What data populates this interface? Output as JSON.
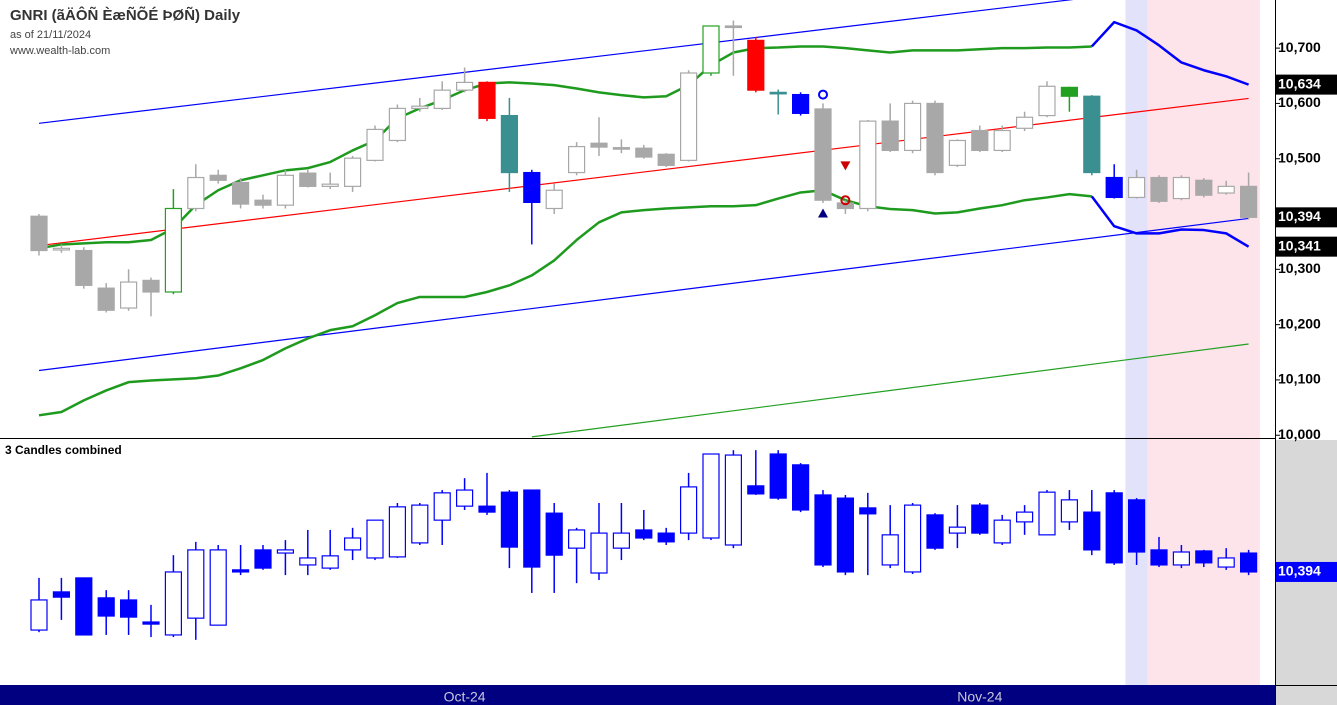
{
  "header": {
    "title": "GNRI (ãÄÔÑ ÈæÑÕÉ ÞØÑ) Daily",
    "date": "as of 21/11/2024",
    "source": "www.wealth-lab.com"
  },
  "chart_data": [
    {
      "type": "candlestick",
      "categories": [
        null,
        null,
        null,
        null,
        null,
        null,
        null,
        null,
        null,
        null,
        null,
        null,
        null,
        null,
        null,
        null,
        null,
        null,
        null,
        "Oct-24",
        null,
        null,
        null,
        null,
        null,
        null,
        null,
        null,
        null,
        null,
        null,
        null,
        null,
        null,
        null,
        null,
        null,
        null,
        null,
        null,
        null,
        null,
        "Nov-24",
        null,
        null,
        null,
        null,
        null,
        null,
        null,
        null,
        null,
        null,
        null,
        null
      ],
      "open": [
        10396,
        10335,
        10334,
        10266,
        10230,
        10280,
        10259,
        10410,
        10470,
        10457,
        10425,
        10416,
        10474,
        10450,
        10450,
        10497,
        10533,
        10591,
        10591,
        10624,
        10638,
        10578,
        10475,
        10410,
        10475,
        10528,
        10520,
        10519,
        10508,
        10497,
        10655,
        10740,
        10714,
        10620,
        10616,
        10590,
        10420,
        10410,
        10568,
        10515,
        10600,
        10488,
        10551,
        10515,
        10555,
        10578,
        10629,
        10613,
        10466,
        10430,
        10466,
        10428,
        10461,
        10438,
        10450
      ],
      "high": [
        10400,
        10345,
        10340,
        10275,
        10300,
        10285,
        10445,
        10490,
        10480,
        10465,
        10435,
        10480,
        10480,
        10475,
        10505,
        10560,
        10598,
        10610,
        10640,
        10665,
        10640,
        10610,
        10480,
        10455,
        10530,
        10575,
        10535,
        10525,
        10510,
        10660,
        10740,
        10750,
        10720,
        10625,
        10620,
        10600,
        10425,
        10570,
        10600,
        10605,
        10605,
        10535,
        10560,
        10560,
        10585,
        10640,
        10630,
        10615,
        10490,
        10480,
        10470,
        10470,
        10465,
        10460,
        10475
      ],
      "low": [
        10325,
        10330,
        10265,
        10222,
        10225,
        10215,
        10255,
        10405,
        10455,
        10410,
        10410,
        10410,
        10448,
        10445,
        10440,
        10495,
        10530,
        10585,
        10588,
        10620,
        10568,
        10440,
        10345,
        10400,
        10470,
        10505,
        10510,
        10500,
        10485,
        10495,
        10650,
        10650,
        10620,
        10580,
        10578,
        10420,
        10400,
        10405,
        10512,
        10510,
        10470,
        10485,
        10512,
        10512,
        10550,
        10575,
        10585,
        10470,
        10428,
        10428,
        10420,
        10425,
        10430,
        10435,
        10390
      ],
      "close": [
        10334,
        10338,
        10271,
        10226,
        10277,
        10259,
        10410,
        10466,
        10461,
        10418,
        10416,
        10470,
        10450,
        10454,
        10501,
        10553,
        10591,
        10595,
        10624,
        10638,
        10573,
        10475,
        10421,
        10443,
        10522,
        10521,
        10519,
        10503,
        10488,
        10655,
        10740,
        10738,
        10624,
        10618,
        10582,
        10425,
        10410,
        10568,
        10515,
        10600,
        10475,
        10533,
        10515,
        10551,
        10575,
        10631,
        10613,
        10475,
        10430,
        10466,
        10423,
        10466,
        10434,
        10450,
        10394
      ],
      "colors": [
        "#a8a8a8",
        "#a8a8a8",
        "#a8a8a8",
        "#a8a8a8",
        "#a8a8a8",
        "#a8a8a8",
        "#22a022",
        "#a8a8a8",
        "#a8a8a8",
        "#a8a8a8",
        "#a8a8a8",
        "#a8a8a8",
        "#a8a8a8",
        "#a8a8a8",
        "#a8a8a8",
        "#a8a8a8",
        "#a8a8a8",
        "#a8a8a8",
        "#a8a8a8",
        "#a8a8a8",
        "#ff0000",
        "#3a9090",
        "#0000ff",
        "#a8a8a8",
        "#a8a8a8",
        "#a8a8a8",
        "#a8a8a8",
        "#a8a8a8",
        "#a8a8a8",
        "#a8a8a8",
        "#22a022",
        "#a8a8a8",
        "#ff0000",
        "#3a9090",
        "#0000ff",
        "#a8a8a8",
        "#a8a8a8",
        "#a8a8a8",
        "#a8a8a8",
        "#a8a8a8",
        "#a8a8a8",
        "#a8a8a8",
        "#a8a8a8",
        "#a8a8a8",
        "#a8a8a8",
        "#a8a8a8",
        "#22a022",
        "#3a9090",
        "#0000ff",
        "#a8a8a8",
        "#a8a8a8",
        "#a8a8a8",
        "#a8a8a8",
        "#a8a8a8",
        "#a8a8a8"
      ],
      "ylim": [
        9995,
        10787
      ],
      "yticks": [
        {
          "value": 10000,
          "label": "10,000"
        },
        {
          "value": 10100,
          "label": "10,100"
        },
        {
          "value": 10200,
          "label": "10,200"
        },
        {
          "value": 10300,
          "label": "10,300"
        },
        {
          "value": 10500,
          "label": "10,500"
        },
        {
          "value": 10600,
          "label": "10,600"
        },
        {
          "value": 10700,
          "label": "10,700"
        }
      ],
      "series": [
        {
          "color": "#1e9a1e",
          "values": [
            10338,
            10345,
            10347,
            10349,
            10349,
            10353,
            10374,
            10416,
            10443,
            10461,
            10470,
            10479,
            10483,
            10494,
            10515,
            10533,
            10573,
            10591,
            10606,
            10624,
            10636,
            10638,
            10636,
            10633,
            10627,
            10620,
            10615,
            10611,
            10613,
            10633,
            10669,
            10692,
            10700,
            10701,
            10703,
            10703,
            10700,
            10696,
            10692,
            10696,
            10696,
            10696,
            10698,
            10700,
            10700,
            10701,
            10701,
            10703,
            null,
            null,
            null,
            null,
            null,
            null,
            null
          ]
        },
        {
          "color": "#1e9a1e",
          "values": [
            10036,
            10042,
            10063,
            10081,
            10096,
            10099,
            10101,
            10103,
            10108,
            10121,
            10136,
            10157,
            10175,
            10190,
            10197,
            10217,
            10239,
            10250,
            10250,
            10250,
            10259,
            10271,
            10289,
            10316,
            10353,
            10385,
            10403,
            10407,
            10410,
            10412,
            10414,
            10414,
            10416,
            10428,
            10439,
            10443,
            10425,
            10414,
            10409,
            10407,
            10401,
            10403,
            10410,
            10416,
            10425,
            10430,
            10436,
            10432,
            null,
            null,
            null,
            null,
            null,
            null,
            null
          ]
        },
        {
          "color": "#0000ff",
          "values": [
            null,
            null,
            null,
            null,
            null,
            null,
            null,
            null,
            null,
            null,
            null,
            null,
            null,
            null,
            null,
            null,
            null,
            null,
            null,
            null,
            null,
            null,
            null,
            null,
            null,
            null,
            null,
            null,
            null,
            null,
            null,
            null,
            null,
            null,
            null,
            null,
            null,
            null,
            null,
            null,
            null,
            null,
            null,
            null,
            null,
            null,
            null,
            10703,
            10747,
            10732,
            10705,
            10674,
            10660,
            10649,
            10634
          ]
        },
        {
          "color": "#0000ff",
          "values": [
            null,
            null,
            null,
            null,
            null,
            null,
            null,
            null,
            null,
            null,
            null,
            null,
            null,
            null,
            null,
            null,
            null,
            null,
            null,
            null,
            null,
            null,
            null,
            null,
            null,
            null,
            null,
            null,
            null,
            null,
            null,
            null,
            null,
            null,
            null,
            null,
            null,
            null,
            null,
            null,
            null,
            null,
            null,
            null,
            null,
            null,
            null,
            10432,
            10378,
            10365,
            10365,
            10372,
            10371,
            10365,
            10341
          ]
        }
      ],
      "trend_lines": [
        {
          "color": "#ff0000",
          "x": [
            0,
            54
          ],
          "values": [
            10343,
            10609
          ]
        },
        {
          "color": "#0000ff",
          "x": [
            0,
            54
          ],
          "values": [
            10564,
            10826
          ]
        },
        {
          "color": "#0000ff",
          "x": [
            0,
            54
          ],
          "values": [
            10117,
            10392
          ]
        },
        {
          "color": "#22a022",
          "x": [
            22,
            54
          ],
          "values": [
            9997,
            10165
          ]
        }
      ],
      "signals": [
        {
          "index": 35,
          "value": 10616,
          "shape": "circle",
          "color": "#0000ff"
        },
        {
          "index": 35,
          "value": 10401,
          "shape": "triangle-up",
          "color": "#000080"
        },
        {
          "index": 36,
          "value": 10488,
          "shape": "triangle-down",
          "color": "#cc0000"
        },
        {
          "index": 36,
          "value": 10425,
          "shape": "circle",
          "color": "#cc0000"
        }
      ],
      "highlights": [
        {
          "from": 49,
          "to": 49,
          "color": "#e2e2fb"
        },
        {
          "from": 50,
          "to": 54,
          "color": "#fde3ea"
        }
      ],
      "price_labels": [
        {
          "value": 10634,
          "label": "10,634",
          "color": "#000000"
        },
        {
          "value": 10394,
          "label": "10,394",
          "color": "#000000"
        },
        {
          "value": 10341,
          "label": "10,341",
          "color": "#000000"
        }
      ]
    },
    {
      "type": "candlestick",
      "title": "3 Candles combined",
      "color": "#0000ff",
      "open": [
        10228,
        10337,
        10377,
        10320,
        10314,
        10251,
        10214,
        10262,
        10242,
        10400,
        10457,
        10448,
        10414,
        10405,
        10457,
        10434,
        10437,
        10477,
        10542,
        10582,
        10582,
        10622,
        10628,
        10562,
        10462,
        10391,
        10462,
        10514,
        10505,
        10505,
        10491,
        10471,
        10640,
        10731,
        10700,
        10614,
        10605,
        10577,
        10414,
        10394,
        10557,
        10505,
        10585,
        10477,
        10537,
        10500,
        10537,
        10565,
        10620,
        10600,
        10457,
        10414,
        10454,
        10408,
        10448
      ],
      "high": [
        10377,
        10377,
        10377,
        10342,
        10342,
        10300,
        10442,
        10480,
        10471,
        10471,
        10471,
        10485,
        10514,
        10514,
        10520,
        10542,
        10591,
        10591,
        10628,
        10662,
        10677,
        10628,
        10628,
        10591,
        10520,
        10591,
        10591,
        10571,
        10520,
        10677,
        10731,
        10742,
        10742,
        10742,
        10705,
        10628,
        10614,
        10620,
        10585,
        10591,
        10562,
        10585,
        10591,
        10557,
        10585,
        10628,
        10628,
        10628,
        10628,
        10605,
        10494,
        10471,
        10457,
        10462,
        10457
      ],
      "low": [
        10222,
        10257,
        10214,
        10214,
        10214,
        10208,
        10208,
        10200,
        10242,
        10385,
        10400,
        10385,
        10385,
        10400,
        10428,
        10428,
        10434,
        10471,
        10471,
        10571,
        10557,
        10405,
        10334,
        10334,
        10362,
        10371,
        10428,
        10485,
        10471,
        10485,
        10485,
        10462,
        10614,
        10600,
        10565,
        10408,
        10385,
        10385,
        10405,
        10388,
        10457,
        10462,
        10500,
        10471,
        10500,
        10500,
        10514,
        10442,
        10414,
        10414,
        10408,
        10405,
        10408,
        10400,
        10385
      ],
      "close": [
        10314,
        10322,
        10214,
        10268,
        10265,
        10245,
        10394,
        10457,
        10457,
        10394,
        10405,
        10457,
        10434,
        10440,
        10491,
        10542,
        10580,
        10585,
        10620,
        10628,
        10565,
        10465,
        10408,
        10442,
        10514,
        10505,
        10505,
        10491,
        10480,
        10637,
        10731,
        10728,
        10617,
        10605,
        10571,
        10414,
        10394,
        10560,
        10500,
        10585,
        10462,
        10522,
        10505,
        10542,
        10565,
        10622,
        10600,
        10457,
        10420,
        10451,
        10414,
        10451,
        10420,
        10434,
        10394
      ],
      "ylim": [
        10071,
        10771
      ],
      "price_labels": [
        {
          "value": 10394,
          "label": "10,394",
          "color": "#0000ff"
        }
      ]
    }
  ]
}
